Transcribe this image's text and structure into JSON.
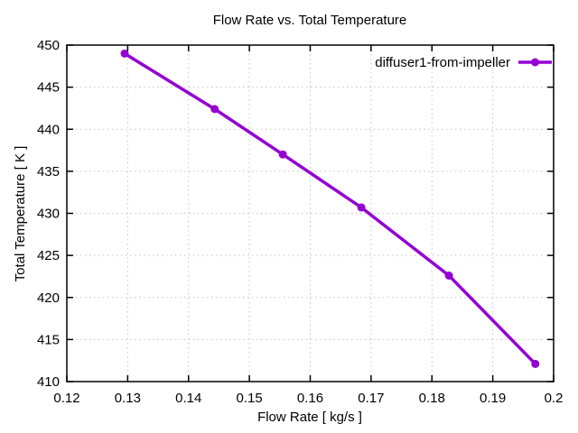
{
  "title": "Flow Rate vs. Total Temperature",
  "colors": {
    "series": "#9400d3",
    "grid": "#c4c4c4",
    "axis": "#000000",
    "background": "#ffffff"
  },
  "legend": {
    "label": "diffuser1-from-impeller",
    "position": "top-right-inside"
  },
  "chart_data": {
    "type": "line",
    "title": "Flow Rate vs. Total Temperature",
    "xlabel": "Flow Rate [ kg/s ]",
    "ylabel": "Total Temperature [ K ]",
    "xlim": [
      0.12,
      0.2
    ],
    "ylim": [
      410,
      450
    ],
    "x_ticks": [
      0.12,
      0.13,
      0.14,
      0.15,
      0.16,
      0.17,
      0.18,
      0.19,
      0.2
    ],
    "x_tick_labels": [
      "0.12",
      "0.13",
      "0.14",
      "0.15",
      "0.16",
      "0.17",
      "0.18",
      "0.19",
      "0.2"
    ],
    "y_ticks": [
      410,
      415,
      420,
      425,
      430,
      435,
      440,
      445,
      450
    ],
    "y_tick_labels": [
      "410",
      "415",
      "420",
      "425",
      "430",
      "435",
      "440",
      "445",
      "450"
    ],
    "grid": true,
    "legend_position": "top-right",
    "series": [
      {
        "name": "diffuser1-from-impeller",
        "color": "#9400d3",
        "marker": "filled-circle",
        "line_width": 3.5,
        "x": [
          0.1295,
          0.1443,
          0.1555,
          0.1684,
          0.1828,
          0.197
        ],
        "y": [
          449.0,
          442.4,
          437.0,
          430.7,
          422.6,
          412.1
        ]
      }
    ]
  }
}
